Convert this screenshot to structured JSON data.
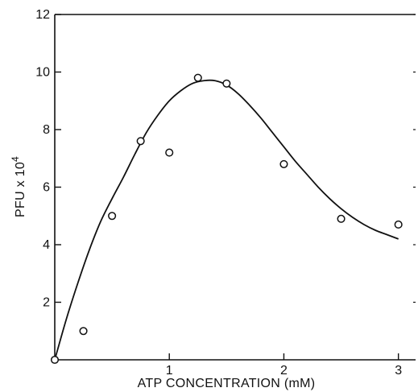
{
  "chart_data": {
    "type": "scatter",
    "xlabel": "ATP CONCENTRATION (mM)",
    "ylabel_base": "PFU x 10",
    "ylabel_exp": "4",
    "xlim": [
      0,
      3.15
    ],
    "ylim": [
      0,
      12
    ],
    "x_ticks": [
      1,
      2,
      3
    ],
    "x_tick_labels": [
      "1",
      "2",
      "3"
    ],
    "y_ticks": [
      2,
      4,
      6,
      8,
      10,
      12
    ],
    "y_tick_labels": [
      "2",
      "4",
      "6",
      "8",
      "10",
      "12"
    ],
    "grid": false,
    "legend": "none",
    "series": [
      {
        "kind": "points",
        "marker": "open-circle",
        "x": [
          0,
          0.25,
          0.5,
          0.75,
          1.0,
          1.25,
          1.5,
          2.0,
          2.5,
          3.0
        ],
        "y": [
          0,
          1.0,
          5.0,
          7.6,
          7.2,
          9.8,
          9.6,
          6.8,
          4.9,
          4.7
        ]
      },
      {
        "kind": "fit-curve",
        "x": [
          0,
          0.1,
          0.2,
          0.3,
          0.4,
          0.5,
          0.6,
          0.7,
          0.8,
          0.9,
          1.0,
          1.1,
          1.2,
          1.3,
          1.4,
          1.5,
          1.6,
          1.7,
          1.8,
          1.9,
          2.0,
          2.1,
          2.2,
          2.3,
          2.4,
          2.5,
          2.6,
          2.7,
          2.8,
          2.9,
          3.0
        ],
        "y": [
          0,
          1.4,
          2.65,
          3.8,
          4.8,
          5.6,
          6.35,
          7.15,
          7.9,
          8.5,
          9.0,
          9.35,
          9.6,
          9.7,
          9.7,
          9.55,
          9.25,
          8.85,
          8.4,
          7.9,
          7.4,
          6.9,
          6.45,
          6.0,
          5.6,
          5.25,
          4.95,
          4.7,
          4.5,
          4.35,
          4.2
        ]
      }
    ]
  }
}
